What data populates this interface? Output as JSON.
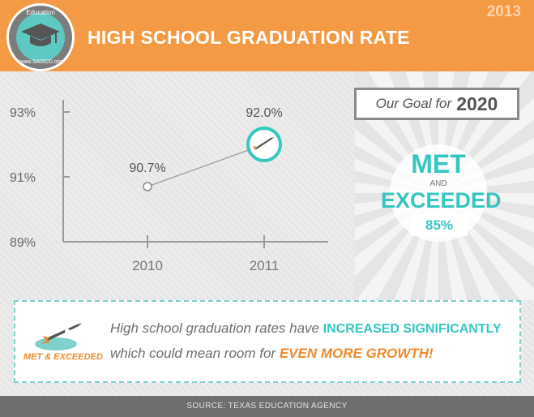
{
  "header": {
    "title": "HIGH SCHOOL GRADUATION RATE",
    "year": "2013",
    "logo_top": "Education",
    "logo_bottom": "www.SA2020.org",
    "logo_icon": "graduation-cap-icon"
  },
  "chart_data": {
    "type": "line",
    "categories": [
      "2010",
      "2011"
    ],
    "series": [
      {
        "values": [
          90.7,
          92.0
        ],
        "labels": [
          "90.7%",
          "92.0%"
        ]
      }
    ],
    "yticks": [
      "89%",
      "91%",
      "93%"
    ],
    "ytick_values": [
      89,
      91,
      93
    ],
    "ylim": [
      89,
      93
    ],
    "title": "",
    "xlabel": "",
    "ylabel": "",
    "grid": false,
    "marker_icon": "rocket-icon",
    "colors": {
      "line": "#999999",
      "marker": "#36c6c0"
    }
  },
  "goal": {
    "label": "Our Goal for",
    "year": "2020",
    "status_1": "MET",
    "and": "AND",
    "status_2": "EXCEEDED",
    "target": "85%"
  },
  "note": {
    "badge": "MET & EXCEEDED",
    "line1_pre": "High school graduation rates have ",
    "line1_hl": "INCREASED SIGNIFICANTLY",
    "line2_pre": "which could mean room for ",
    "line2_hl": "EVEN MORE GROWTH!"
  },
  "footer": {
    "source": "SOURCE: TEXAS EDUCATION AGENCY"
  },
  "colors": {
    "orange": "#f59a44",
    "teal": "#36c6c0",
    "gray": "#6f6f6f"
  }
}
